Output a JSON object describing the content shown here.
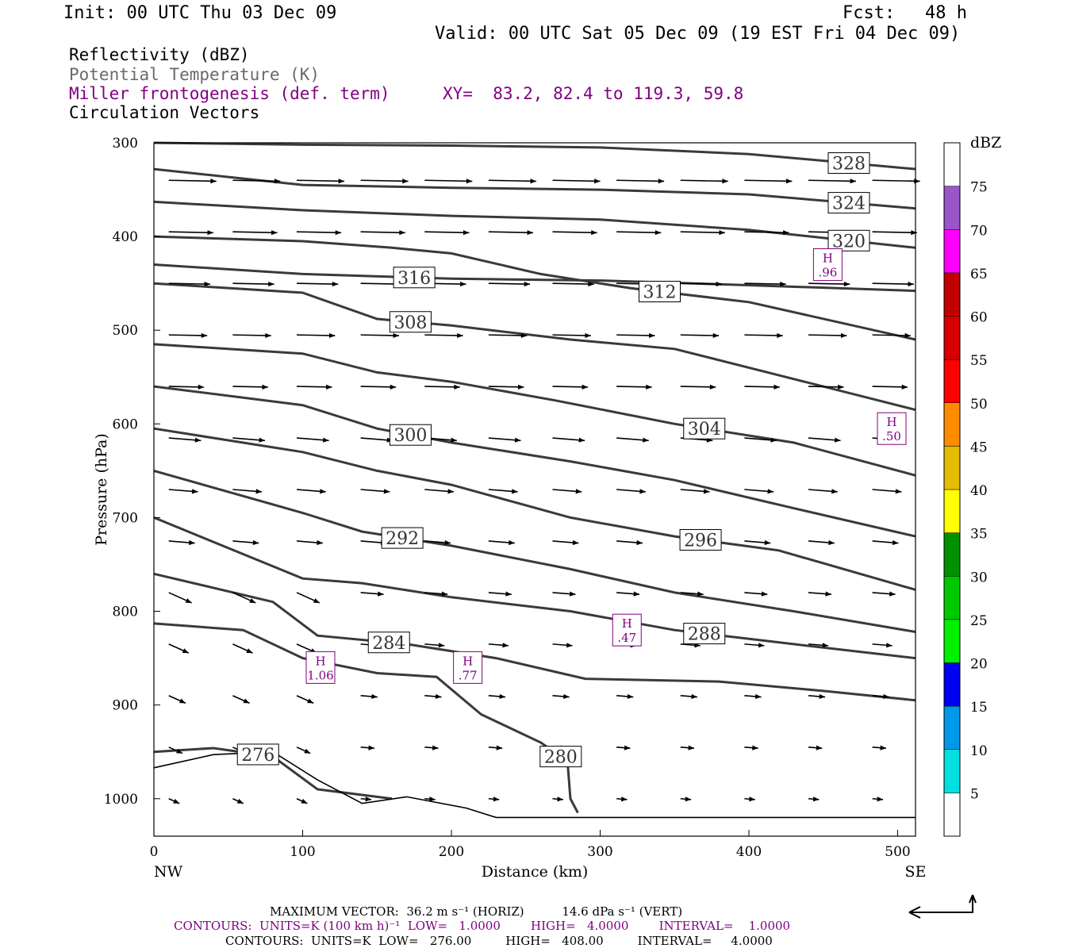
{
  "header": {
    "init": "Init: 00 UTC Thu 03 Dec 09",
    "fcst_label": "Fcst:",
    "fcst_value": "48 h",
    "valid": "Valid: 00 UTC Sat 05 Dec 09 (19 EST Fri 04 Dec 09)"
  },
  "fields": {
    "reflectivity": "Reflectivity (dBZ)",
    "theta": "Potential Temperature (K)",
    "frontogenesis": "Miller frontogenesis (def. term)",
    "xy": "XY=  83.2, 82.4 to 119.3, 59.8",
    "vectors": "Circulation Vectors"
  },
  "footer": {
    "max_vector": "MAXIMUM VECTOR:  36.2 m s⁻¹ (HORIZ)          14.6 dPa s⁻¹ (VERT)",
    "contours_purple": "CONTOURS:  UNITS=K (100 km h)⁻¹  LOW=   1.0000        HIGH=   4.0000        INTERVAL=    1.0000",
    "contours_black": "CONTOURS:  UNITS=K  LOW=   276.00         HIGH=   408.00         INTERVAL=     4.0000"
  },
  "colorbar": {
    "unit": "dBZ",
    "levels": [
      "5",
      "10",
      "15",
      "20",
      "25",
      "30",
      "35",
      "40",
      "45",
      "50",
      "55",
      "60",
      "65",
      "70",
      "75"
    ],
    "colors": [
      "#ffffff",
      "#00e0e0",
      "#0098e8",
      "#0000f0",
      "#00f000",
      "#00c800",
      "#009000",
      "#ffff00",
      "#e6bc00",
      "#ff8c00",
      "#ff0000",
      "#d60000",
      "#c00000",
      "#ff00ff",
      "#9955c9",
      "#ffffff"
    ]
  },
  "chart_data": {
    "type": "line",
    "title": "",
    "xlabel": "Distance (km)",
    "ylabel": "Pressure (hPa)",
    "xlim": [
      0,
      512
    ],
    "ylim": [
      1040,
      300
    ],
    "x_ticks": [
      "0",
      "100",
      "200",
      "300",
      "400",
      "500"
    ],
    "y_ticks": [
      "300",
      "400",
      "500",
      "600",
      "700",
      "800",
      "900",
      "1000"
    ],
    "x_end_labels": {
      "left": "NW",
      "right": "SE"
    },
    "isentropes": [
      {
        "name": "328",
        "points": [
          [
            0,
            300
          ],
          [
            100,
            302
          ],
          [
            200,
            303
          ],
          [
            300,
            305
          ],
          [
            400,
            312
          ],
          [
            512,
            328
          ]
        ]
      },
      {
        "name": "324",
        "points": [
          [
            0,
            328
          ],
          [
            100,
            345
          ],
          [
            200,
            348
          ],
          [
            300,
            350
          ],
          [
            400,
            355
          ],
          [
            512,
            370
          ]
        ]
      },
      {
        "name": "320",
        "points": [
          [
            0,
            363
          ],
          [
            100,
            372
          ],
          [
            200,
            378
          ],
          [
            300,
            382
          ],
          [
            400,
            393
          ],
          [
            512,
            412
          ]
        ]
      },
      {
        "name": "316",
        "points": [
          [
            0,
            430
          ],
          [
            100,
            440
          ],
          [
            200,
            445
          ],
          [
            300,
            447
          ],
          [
            400,
            452
          ],
          [
            512,
            458
          ]
        ]
      },
      {
        "name": "312",
        "points": [
          [
            0,
            400
          ],
          [
            100,
            405
          ],
          [
            160,
            412
          ],
          [
            200,
            418
          ],
          [
            260,
            440
          ],
          [
            320,
            455
          ],
          [
            400,
            470
          ],
          [
            512,
            510
          ]
        ]
      },
      {
        "name": "308",
        "points": [
          [
            0,
            450
          ],
          [
            100,
            460
          ],
          [
            150,
            488
          ],
          [
            200,
            495
          ],
          [
            280,
            510
          ],
          [
            350,
            520
          ],
          [
            420,
            548
          ],
          [
            512,
            585
          ]
        ]
      },
      {
        "name": "304",
        "points": [
          [
            0,
            515
          ],
          [
            100,
            525
          ],
          [
            150,
            545
          ],
          [
            200,
            555
          ],
          [
            270,
            575
          ],
          [
            350,
            600
          ],
          [
            430,
            620
          ],
          [
            512,
            655
          ]
        ]
      },
      {
        "name": "300",
        "points": [
          [
            0,
            560
          ],
          [
            100,
            580
          ],
          [
            150,
            605
          ],
          [
            200,
            620
          ],
          [
            280,
            640
          ],
          [
            350,
            660
          ],
          [
            430,
            690
          ],
          [
            512,
            720
          ]
        ]
      },
      {
        "name": "296",
        "points": [
          [
            0,
            605
          ],
          [
            100,
            630
          ],
          [
            150,
            650
          ],
          [
            200,
            665
          ],
          [
            280,
            700
          ],
          [
            350,
            720
          ],
          [
            420,
            735
          ],
          [
            512,
            777
          ]
        ]
      },
      {
        "name": "292",
        "points": [
          [
            0,
            650
          ],
          [
            100,
            695
          ],
          [
            140,
            715
          ],
          [
            200,
            730
          ],
          [
            280,
            755
          ],
          [
            350,
            780
          ],
          [
            430,
            800
          ],
          [
            512,
            822
          ]
        ]
      },
      {
        "name": "288",
        "points": [
          [
            0,
            700
          ],
          [
            100,
            765
          ],
          [
            140,
            770
          ],
          [
            200,
            785
          ],
          [
            280,
            800
          ],
          [
            350,
            820
          ],
          [
            430,
            835
          ],
          [
            512,
            850
          ]
        ]
      },
      {
        "name": "284",
        "points": [
          [
            0,
            760
          ],
          [
            80,
            790
          ],
          [
            110,
            826
          ],
          [
            170,
            835
          ],
          [
            230,
            850
          ],
          [
            290,
            872
          ],
          [
            380,
            875
          ],
          [
            450,
            885
          ],
          [
            512,
            895
          ]
        ]
      },
      {
        "name": "280",
        "points": [
          [
            0,
            813
          ],
          [
            60,
            820
          ],
          [
            100,
            850
          ],
          [
            150,
            866
          ],
          [
            190,
            870
          ],
          [
            220,
            910
          ],
          [
            260,
            940
          ],
          [
            278,
            960
          ],
          [
            280,
            1000
          ],
          [
            285,
            1015
          ]
        ]
      },
      {
        "name": "276",
        "points": [
          [
            0,
            950
          ],
          [
            40,
            946
          ],
          [
            80,
            955
          ],
          [
            110,
            990
          ],
          [
            150,
            998
          ],
          [
            160,
            1000
          ]
        ]
      }
    ],
    "terrain_points": [
      [
        0,
        967
      ],
      [
        40,
        953
      ],
      [
        80,
        950
      ],
      [
        110,
        980
      ],
      [
        140,
        1005
      ],
      [
        170,
        998
      ],
      [
        210,
        1010
      ],
      [
        230,
        1020
      ],
      [
        512,
        1020
      ]
    ],
    "frontogenesis_maxima": [
      {
        "label": "H",
        "value": ".96",
        "x": 453,
        "p": 430
      },
      {
        "label": "H",
        "value": ".50",
        "x": 496,
        "p": 605
      },
      {
        "label": "H",
        "value": ".47",
        "x": 318,
        "p": 820
      },
      {
        "label": "H",
        "value": ".77",
        "x": 211,
        "p": 860
      },
      {
        "label": "H",
        "value": "1.06",
        "x": 112,
        "p": 860
      }
    ]
  }
}
